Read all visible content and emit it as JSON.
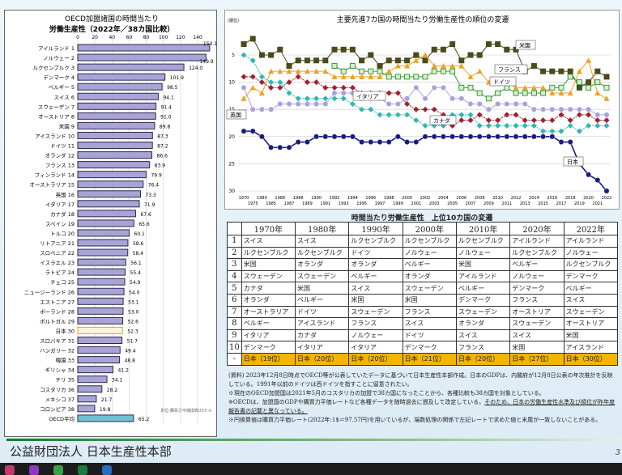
{
  "left_chart": {
    "title1": "OECD加盟諸国の時間当たり",
    "title2": "労働生産性（2022年／38カ国比較）",
    "unit": "単位:購買力平価換算USドル",
    "ticks": [
      0,
      20,
      40,
      60,
      80,
      100,
      120,
      140
    ],
    "countries": [
      "アイルランド 1",
      "ノルウェー 2",
      "ルクセンブルク 3",
      "デンマーク 4",
      "ベルギー 5",
      "スイス 6",
      "スウェーデン 7",
      "オーストリア 8",
      "米国 9",
      "アイスランド 10",
      "ドイツ 11",
      "オランダ 12",
      "フランス 13",
      "フィンランド 14",
      "オーストラリア 15",
      "英国 16",
      "イタリア 17",
      "カナダ 18",
      "スペイン 19",
      "トルコ 20",
      "リトアニア 21",
      "スロベニア 22",
      "イスラエル 23",
      "ラトビア 24",
      "チェコ 25",
      "ニュージーランド 26",
      "エストニア 27",
      "ポーランド 28",
      "ポルトガル 29",
      "日本 30",
      "スロバキア 31",
      "ハンガリー 32",
      "韓国 33",
      "ギリシャ 34",
      "チリ 35",
      "コスタリカ 36",
      "メキシコ 37",
      "コロンビア 38",
      "OECD平均"
    ],
    "values": [
      "154.1",
      "149.9",
      "124.0",
      "101.9",
      "98.5",
      "94.1",
      "91.4",
      "91.0",
      "89.8",
      "87.3",
      "87.2",
      "86.6",
      "83.9",
      "79.9",
      "76.4",
      "73.3",
      "71.9",
      "67.6",
      "65.6",
      "60.1",
      "58.6",
      "58.4",
      "56.1",
      "55.4",
      "54.9",
      "54.0",
      "53.1",
      "53.0",
      "52.6",
      "52.3",
      "51.7",
      "49.4",
      "48.8",
      "41.2",
      "34.1",
      "28.2",
      "21.7",
      "19.8",
      "65.2"
    ],
    "colors": {
      "bar": "#a9a3d6",
      "japan": "#fff2d6",
      "japan_border": "#f0a030",
      "oecd": "#6fc0d0"
    }
  },
  "chart_data": {
    "type": "line",
    "title": "主要先進7カ国の時間当たり労働生産性の順位の変遷",
    "ylabel": "(順位)",
    "ylim": [
      30,
      0
    ],
    "yticks": [
      5,
      10,
      15,
      20,
      25,
      30
    ],
    "x": [
      1970,
      1975,
      1980,
      1985,
      1986,
      1987,
      1988,
      1989,
      1990,
      1991,
      1992,
      1993,
      1994,
      1995,
      1996,
      1997,
      1998,
      1999,
      2000,
      2001,
      2002,
      2003,
      2004,
      2005,
      2006,
      2007,
      2008,
      2009,
      2010,
      2011,
      2012,
      2013,
      2014,
      2015,
      2016,
      2017,
      2018,
      2019,
      2020,
      2021,
      2022
    ],
    "series": [
      {
        "name": "米国",
        "color": "#4a4a1a",
        "marker": "square",
        "values": [
          3,
          2,
          5,
          5,
          4,
          7,
          6,
          6,
          6,
          6,
          4,
          4,
          4,
          6,
          5,
          7,
          6,
          6,
          6,
          5,
          6,
          4,
          4,
          3,
          6,
          5,
          5,
          3,
          3,
          4,
          4,
          8,
          7,
          8,
          8,
          8,
          8,
          11,
          10,
          8,
          9
        ]
      },
      {
        "name": "フランス",
        "color": "#f0a020",
        "marker": "triangle",
        "values": [
          13,
          11,
          12,
          8,
          8,
          8,
          8,
          8,
          8,
          8,
          9,
          9,
          9,
          9,
          9,
          9,
          8,
          7,
          7,
          6,
          5,
          7,
          7,
          7,
          7,
          9,
          8,
          10,
          10,
          10,
          11,
          11,
          11,
          11,
          12,
          12,
          12,
          8,
          6,
          12,
          13
        ]
      },
      {
        "name": "ドイツ",
        "color": "#3a9a3a",
        "marker": "square-open",
        "values": [
          null,
          null,
          null,
          null,
          null,
          null,
          null,
          null,
          null,
          null,
          7,
          8,
          7,
          8,
          8,
          8,
          9,
          9,
          9,
          9,
          9,
          8,
          8,
          8,
          11,
          11,
          12,
          13,
          12,
          11,
          12,
          12,
          12,
          12,
          11,
          11,
          9,
          10,
          11,
          10,
          11
        ]
      },
      {
        "name": "イタリア",
        "color": "#a02030",
        "marker": "diamond",
        "values": [
          9,
          9,
          10,
          11,
          11,
          10,
          9,
          10,
          10,
          11,
          11,
          11,
          11,
          12,
          12,
          12,
          12,
          12,
          14,
          15,
          15,
          15,
          16,
          18,
          17,
          17,
          16,
          17,
          17,
          16,
          16,
          17,
          17,
          17,
          17,
          16,
          17,
          16,
          16,
          17,
          17
        ]
      },
      {
        "name": "英国",
        "color": "#a8a0e0",
        "marker": "circle",
        "values": [
          11,
          15,
          15,
          15,
          14,
          14,
          14,
          14,
          14,
          14,
          12,
          12,
          12,
          13,
          13,
          13,
          14,
          14,
          13,
          11,
          13,
          11,
          11,
          13,
          13,
          14,
          14,
          15,
          14,
          14,
          14,
          14,
          15,
          15,
          15,
          15,
          15,
          15,
          15,
          16,
          16
        ]
      },
      {
        "name": "カナダ",
        "color": "#30b8b0",
        "marker": "diamond",
        "values": [
          5,
          6,
          9,
          10,
          10,
          12,
          13,
          13,
          13,
          13,
          13,
          13,
          14,
          15,
          15,
          16,
          16,
          16,
          16,
          17,
          18,
          18,
          18,
          16,
          16,
          16,
          18,
          18,
          18,
          18,
          18,
          18,
          18,
          19,
          19,
          19,
          18,
          19,
          18,
          18,
          18
        ]
      },
      {
        "name": "日本",
        "color": "#1a1a80",
        "marker": "circle",
        "values": [
          19,
          19,
          20,
          22,
          22,
          22,
          21,
          21,
          20,
          20,
          20,
          20,
          20,
          21,
          21,
          21,
          21,
          20,
          21,
          21,
          20,
          20,
          20,
          20,
          20,
          20,
          20,
          20,
          20,
          20,
          20,
          20,
          20,
          20,
          20,
          21,
          21,
          25,
          27,
          28,
          30
        ]
      }
    ],
    "xtick_labels_top": [
      "1970",
      "1980",
      "1986",
      "1988",
      "1990",
      "1992",
      "1994",
      "1996",
      "1998",
      "2000",
      "2002",
      "2004",
      "2006",
      "2008",
      "2010",
      "2012",
      "2014",
      "2016",
      "2018",
      "2020",
      "2022"
    ],
    "xtick_labels_bottom": [
      "1975",
      "1985",
      "1987",
      "1989",
      "1991",
      "1993",
      "1995",
      "1997",
      "1999",
      "2001",
      "2003",
      "2005",
      "2007",
      "2009",
      "2011",
      "2013",
      "2015",
      "2017",
      "2019",
      "2021"
    ]
  },
  "table": {
    "title": "時間当たり労働生産性　上位10カ国の変遷",
    "headers": [
      "1970年",
      "1980年",
      "1990年",
      "2000年",
      "2010年",
      "2020年",
      "2022年"
    ],
    "ranks": [
      "1",
      "2",
      "3",
      "4",
      "5",
      "6",
      "7",
      "8",
      "9",
      "10",
      "-"
    ],
    "rows": [
      [
        "スイス",
        "スイス",
        "ルクセンブルク",
        "ルクセンブルク",
        "ルクセンブルク",
        "アイルランド",
        "アイルランド"
      ],
      [
        "ルクセンブルク",
        "ルクセンブルク",
        "ドイツ",
        "ノルウェー",
        "ノルウェー",
        "ルクセンブルク",
        "ノルウェー"
      ],
      [
        "米国",
        "オランダ",
        "オランダ",
        "ベルギー",
        "米国",
        "ベルギー",
        "ルクセンブルク"
      ],
      [
        "スウェーデン",
        "スウェーデン",
        "ベルギー",
        "オランダ",
        "アイルランド",
        "ノルウェー",
        "デンマーク"
      ],
      [
        "カナダ",
        "米国",
        "スイス",
        "スウェーデン",
        "ベルギー",
        "デンマーク",
        "ベルギー"
      ],
      [
        "オランダ",
        "ベルギー",
        "米国",
        "米国",
        "デンマーク",
        "フランス",
        "スイス"
      ],
      [
        "オーストラリア",
        "ドイツ",
        "スウェーデン",
        "フランス",
        "スウェーデン",
        "オーストリア",
        "スウェーデン"
      ],
      [
        "ベルギー",
        "アイスランド",
        "フランス",
        "スイス",
        "オランダ",
        "スウェーデン",
        "オーストリア"
      ],
      [
        "イタリア",
        "カナダ",
        "ノルウェー",
        "ドイツ",
        "スイス",
        "スイス",
        "米国"
      ],
      [
        "デンマーク",
        "イタリア",
        "イタリア",
        "デンマーク",
        "フランス",
        "米国",
        "アイスランド"
      ],
      [
        "日本（19位）",
        "日本（20位）",
        "日本（20位）",
        "日本（21位）",
        "日本（20位）",
        "日本（27位）",
        "日本（30位）"
      ]
    ]
  },
  "notes": {
    "n1": "(資料) 2023年12月8日時点でOECD等が公表していたデータに基づいて日本生産性本部作成。日本のGDPは、内閣府が12月8日公表の年次推計を反映している。1991年以前のドイツは西ドイツを指すことに留意されたい。",
    "n2": "※現在のOECD加盟国は2021年5月のコスタリカの加盟で38カ国になったことから、各種比較も38カ国を対象としている。",
    "n3a": "※OECDは、加盟国のGDPや購買力平価レートなど各種データを随時過去に遡及して改定している。",
    "n3b": "そのため、日本の労働生産性水準及び順位が昨年度報告書の記載と異なっている。",
    "n4": "※円換算値は購買力平価レート(2022年:1$＝97.57円)を用いているが、端数処理の関係で左記レートで求めた値と末尾が一致しないことがある。"
  },
  "footer": {
    "org": "公益財団法人 日本生産性本部",
    "page": "3"
  }
}
